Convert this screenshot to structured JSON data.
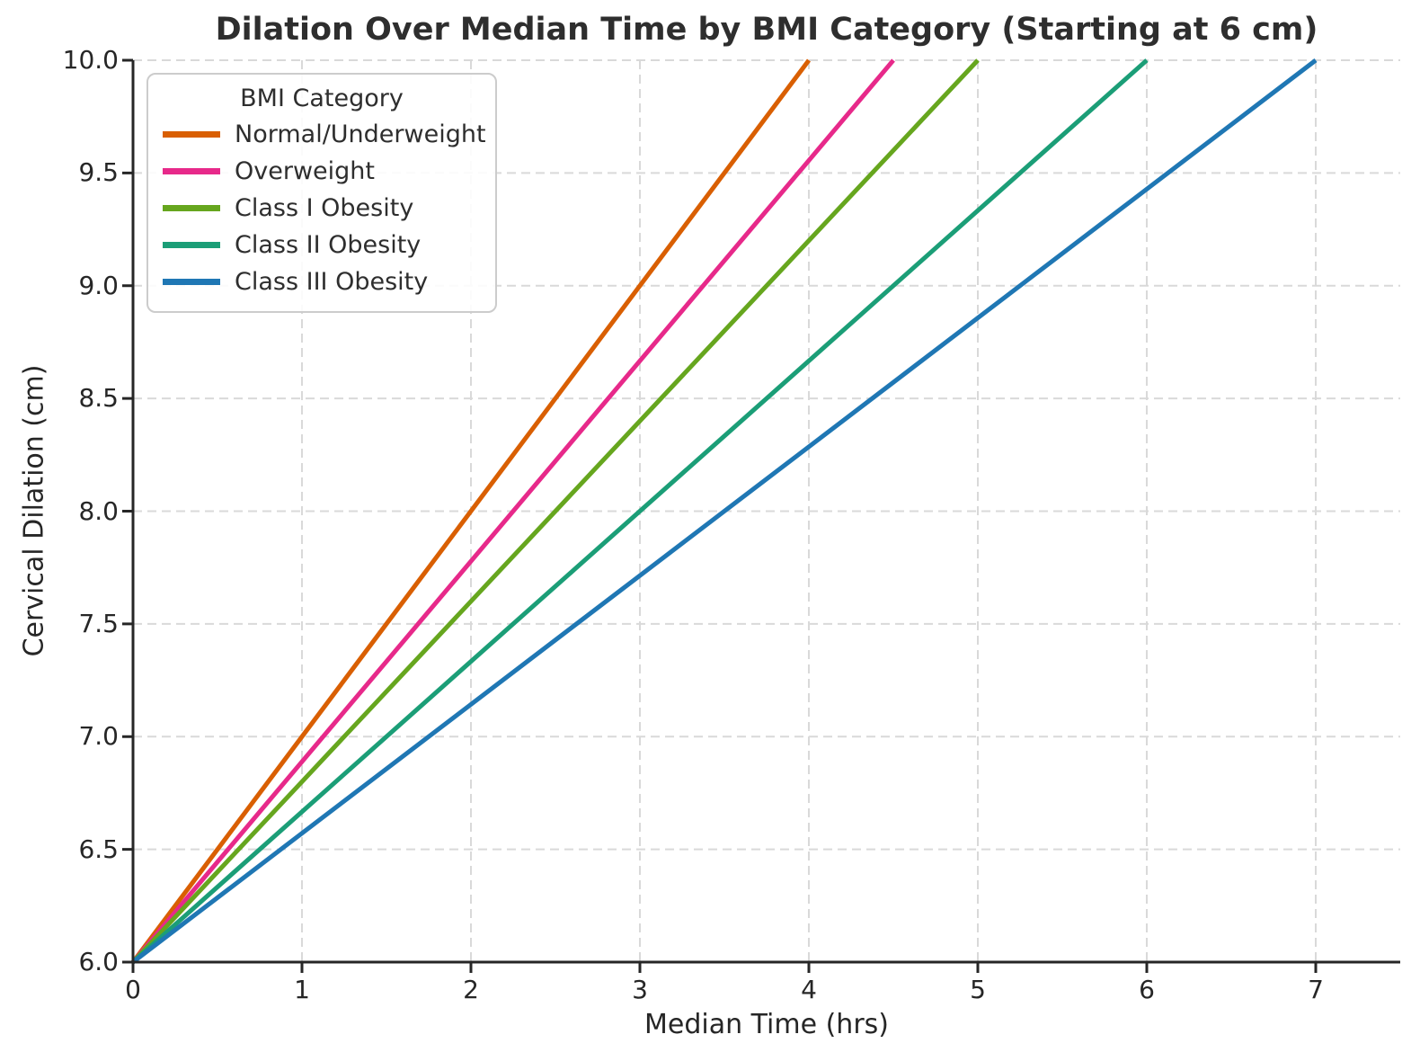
{
  "chart_data": {
    "type": "line",
    "title": "Dilation Over Median Time by BMI Category (Starting at 6 cm)",
    "xlabel": "Median Time (hrs)",
    "ylabel": "Cervical Dilation (cm)",
    "xlim": [
      0,
      7.5
    ],
    "ylim": [
      6.0,
      10.0
    ],
    "xtick_labels": [
      "0",
      "1",
      "2",
      "3",
      "4",
      "5",
      "6",
      "7"
    ],
    "ytick_labels": [
      "6.0",
      "6.5",
      "7.0",
      "7.5",
      "8.0",
      "8.5",
      "9.0",
      "9.5",
      "10.0"
    ],
    "grid": {
      "visible": true,
      "style": "dashed",
      "color": "#d9d9d9",
      "axes": "both"
    },
    "legend": {
      "title": "BMI Category",
      "position": "upper left"
    },
    "start_dilation_cm": 6.0,
    "full_dilation_cm": 10.0,
    "series": [
      {
        "name": "Normal/Underweight",
        "color": "#d95f02",
        "x": [
          0,
          4.0
        ],
        "y": [
          6.0,
          10.0
        ],
        "hours_from_6cm_to_10cm": 4.0
      },
      {
        "name": "Overweight",
        "color": "#e7298a",
        "x": [
          0,
          4.5
        ],
        "y": [
          6.0,
          10.0
        ],
        "hours_from_6cm_to_10cm": 4.5
      },
      {
        "name": "Class I Obesity",
        "color": "#66a61e",
        "x": [
          0,
          5.0
        ],
        "y": [
          6.0,
          10.0
        ],
        "hours_from_6cm_to_10cm": 5.0
      },
      {
        "name": "Class II Obesity",
        "color": "#1b9e77",
        "x": [
          0,
          6.0
        ],
        "y": [
          6.0,
          10.0
        ],
        "hours_from_6cm_to_10cm": 6.0
      },
      {
        "name": "Class III Obesity",
        "color": "#1f77b4",
        "x": [
          0,
          7.0
        ],
        "y": [
          6.0,
          10.0
        ],
        "hours_from_6cm_to_10cm": 7.0
      }
    ],
    "axis_color": "#262626",
    "text_color": "#262626"
  }
}
